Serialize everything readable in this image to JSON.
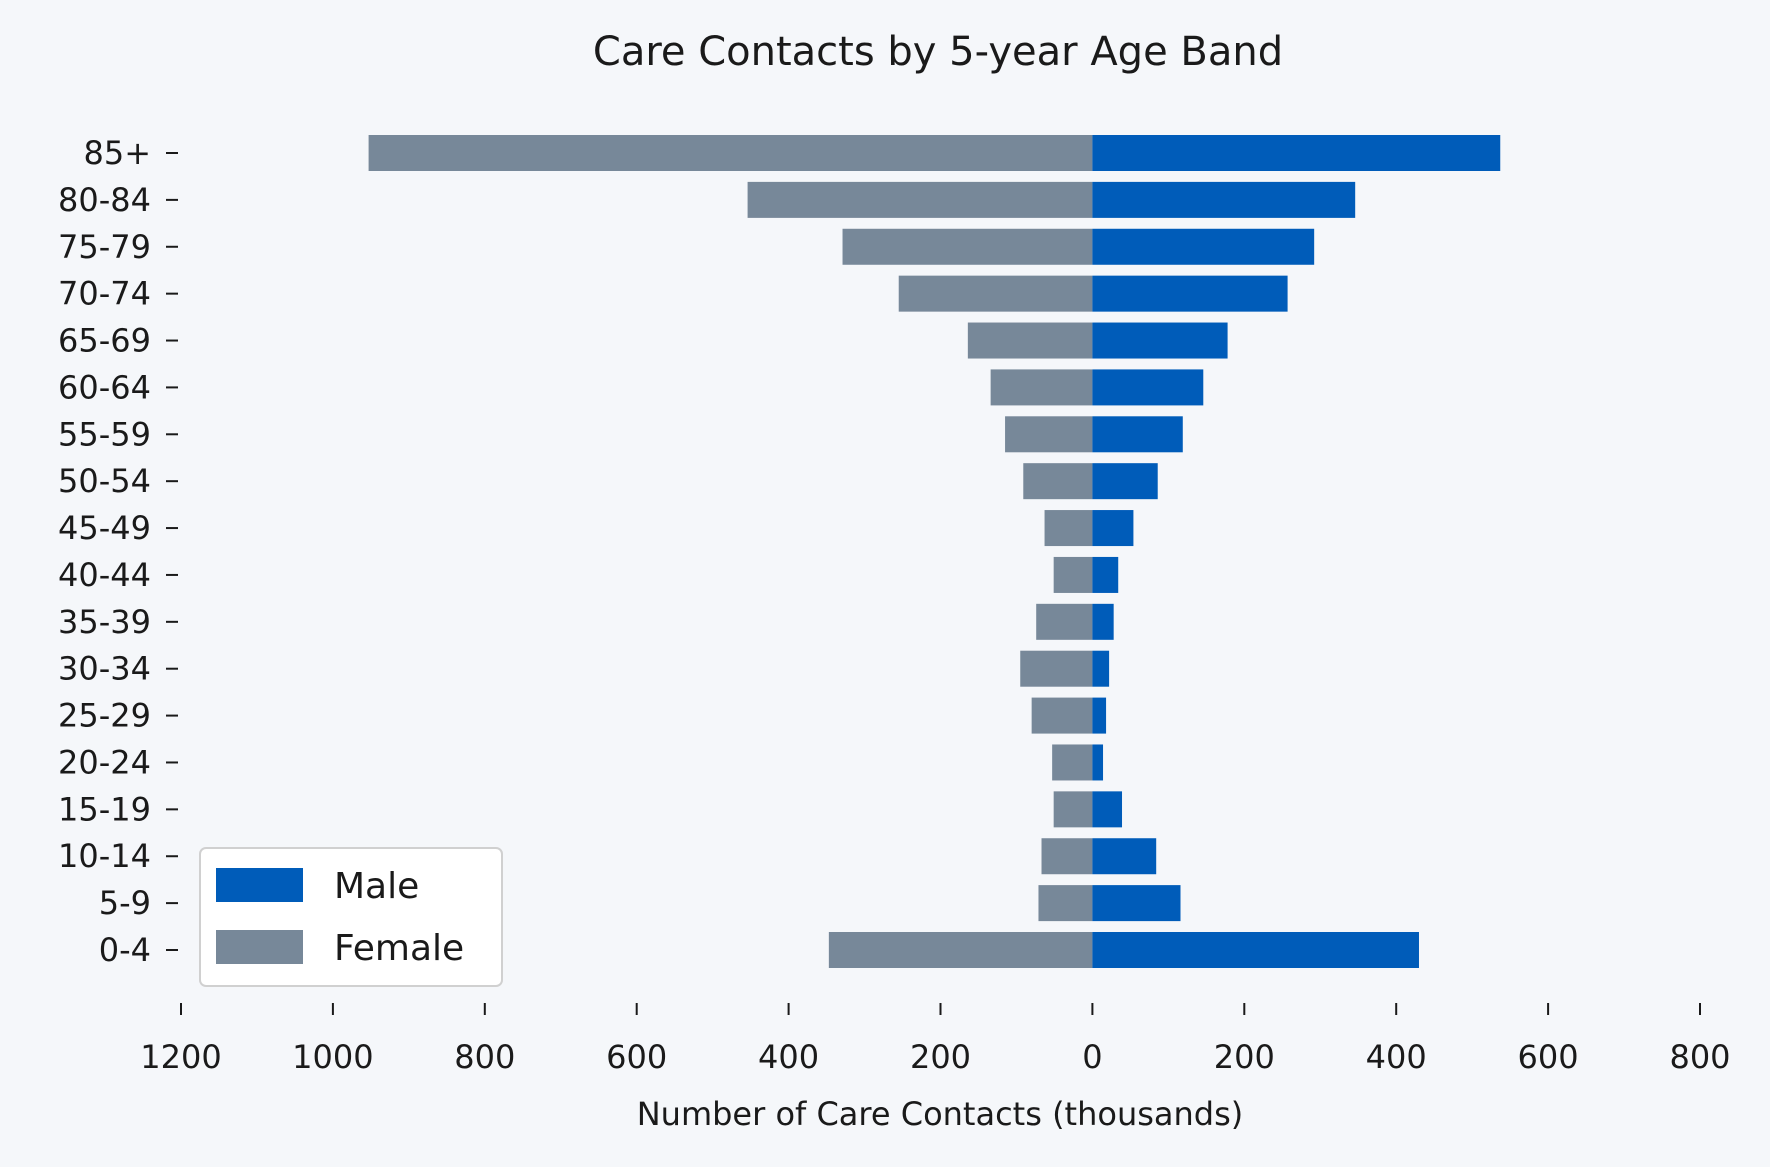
{
  "chart_data": {
    "type": "bar",
    "orientation": "horizontal-diverging",
    "title": "Care Contacts by 5-year Age Band",
    "xlabel": "Number of Care Contacts (thousands)",
    "ylabel": "",
    "xlim": [
      -1200,
      800
    ],
    "x_ticks": [
      -1200,
      -1000,
      -800,
      -600,
      -400,
      -200,
      0,
      200,
      400,
      600,
      800
    ],
    "x_tick_labels": [
      "1200",
      "1000",
      "800",
      "600",
      "400",
      "200",
      "0",
      "200",
      "400",
      "600",
      "800"
    ],
    "categories": [
      "0-4",
      "5-9",
      "10-14",
      "15-19",
      "20-24",
      "25-29",
      "30-34",
      "35-39",
      "40-44",
      "45-49",
      "50-54",
      "55-59",
      "60-64",
      "65-69",
      "70-74",
      "75-79",
      "80-84",
      "85+"
    ],
    "series": [
      {
        "name": "Male",
        "color": "#005cb9",
        "values": [
          430,
          116,
          84,
          39,
          14,
          18,
          22,
          28,
          34,
          54,
          86,
          119,
          146,
          178,
          257,
          292,
          346,
          537
        ]
      },
      {
        "name": "Female",
        "color": "#778899",
        "values": [
          347,
          71,
          67,
          51,
          53,
          80,
          95,
          74,
          51,
          63,
          91,
          115,
          134,
          164,
          255,
          329,
          454,
          953
        ]
      }
    ],
    "legend": {
      "position": "lower-left",
      "entries": [
        "Male",
        "Female"
      ]
    },
    "grid": false
  }
}
